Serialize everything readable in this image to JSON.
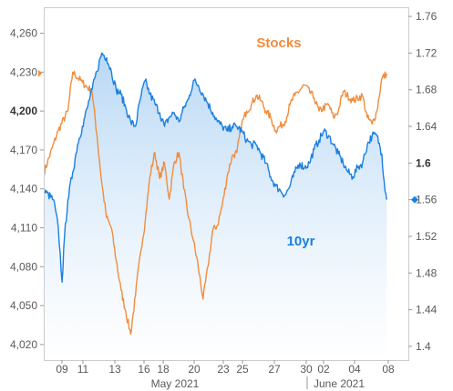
{
  "chart_data": {
    "type": "line",
    "title": "",
    "x_tick_labels": [
      "09",
      "11",
      "13",
      "16",
      "18",
      "20",
      "23",
      "25",
      "27",
      "30",
      "02",
      "04",
      "08"
    ],
    "month_labels": [
      "May 2021",
      "June 2021"
    ],
    "y_left": {
      "ticks": [
        4020,
        4050,
        4080,
        4110,
        4140,
        4170,
        4200,
        4230,
        4260
      ],
      "tick_labels": [
        "4,020",
        "4,050",
        "4,080",
        "4,110",
        "4,140",
        "4,170",
        "4,200",
        "4,230",
        "4,260"
      ],
      "bold_tick": 4200,
      "range": [
        4008,
        4280
      ]
    },
    "y_right": {
      "ticks": [
        1.4,
        1.44,
        1.48,
        1.52,
        1.56,
        1.6,
        1.64,
        1.68,
        1.72,
        1.76
      ],
      "tick_labels": [
        "1.4",
        "1.44",
        "1.48",
        "1.52",
        "1.56",
        "1.6",
        "1.64",
        "1.68",
        "1.72",
        "1.76"
      ],
      "bold_tick": 1.6,
      "range": [
        1.385,
        1.77
      ]
    },
    "series": [
      {
        "name": "Stocks",
        "axis": "left",
        "color": "#f28c3c",
        "last_value": 4229,
        "points": [
          [
            0,
            4152
          ],
          [
            3,
            4185
          ],
          [
            5,
            4200
          ],
          [
            6,
            4230
          ],
          [
            8,
            4222
          ],
          [
            10,
            4215
          ],
          [
            11,
            4182
          ],
          [
            12,
            4145
          ],
          [
            13,
            4118
          ],
          [
            14,
            4110
          ],
          [
            15,
            4085
          ],
          [
            16,
            4062
          ],
          [
            17,
            4045
          ],
          [
            18,
            4028
          ],
          [
            19,
            4058
          ],
          [
            20,
            4090
          ],
          [
            21,
            4115
          ],
          [
            22,
            4150
          ],
          [
            23,
            4168
          ],
          [
            24,
            4148
          ],
          [
            25,
            4160
          ],
          [
            26,
            4132
          ],
          [
            27,
            4160
          ],
          [
            28,
            4168
          ],
          [
            29,
            4140
          ],
          [
            30,
            4118
          ],
          [
            31,
            4100
          ],
          [
            32,
            4080
          ],
          [
            33,
            4055
          ],
          [
            34,
            4080
          ],
          [
            35,
            4108
          ],
          [
            36,
            4112
          ],
          [
            37,
            4128
          ],
          [
            38,
            4150
          ],
          [
            39,
            4165
          ],
          [
            40,
            4168
          ],
          [
            41,
            4190
          ],
          [
            42,
            4200
          ],
          [
            43,
            4205
          ],
          [
            44,
            4212
          ],
          [
            45,
            4208
          ],
          [
            46,
            4200
          ],
          [
            47,
            4195
          ],
          [
            48,
            4185
          ],
          [
            50,
            4192
          ],
          [
            51,
            4205
          ],
          [
            52,
            4212
          ],
          [
            54,
            4220
          ],
          [
            56,
            4210
          ],
          [
            57,
            4200
          ],
          [
            59,
            4205
          ],
          [
            60,
            4195
          ],
          [
            61,
            4200
          ],
          [
            62,
            4215
          ],
          [
            64,
            4208
          ],
          [
            66,
            4212
          ],
          [
            67,
            4195
          ],
          [
            68,
            4190
          ],
          [
            69,
            4200
          ],
          [
            70,
            4225
          ],
          [
            71,
            4229
          ]
        ]
      },
      {
        "name": "10yr",
        "axis": "right",
        "color": "#1a7fe0",
        "last_value": 1.56,
        "points": [
          [
            0,
            1.57
          ],
          [
            2,
            1.56
          ],
          [
            3,
            1.53
          ],
          [
            3.8,
            1.47
          ],
          [
            4.3,
            1.52
          ],
          [
            5,
            1.56
          ],
          [
            6,
            1.59
          ],
          [
            7,
            1.62
          ],
          [
            8,
            1.64
          ],
          [
            9,
            1.66
          ],
          [
            10,
            1.68
          ],
          [
            11,
            1.7
          ],
          [
            12,
            1.72
          ],
          [
            13,
            1.715
          ],
          [
            14,
            1.7
          ],
          [
            15,
            1.68
          ],
          [
            16,
            1.675
          ],
          [
            17,
            1.66
          ],
          [
            18,
            1.645
          ],
          [
            19,
            1.64
          ],
          [
            20,
            1.67
          ],
          [
            21,
            1.69
          ],
          [
            22,
            1.675
          ],
          [
            23,
            1.665
          ],
          [
            24,
            1.655
          ],
          [
            25,
            1.64
          ],
          [
            26,
            1.65
          ],
          [
            27,
            1.655
          ],
          [
            28,
            1.645
          ],
          [
            29,
            1.66
          ],
          [
            30,
            1.67
          ],
          [
            31,
            1.69
          ],
          [
            32,
            1.685
          ],
          [
            33,
            1.675
          ],
          [
            34,
            1.665
          ],
          [
            35,
            1.655
          ],
          [
            36,
            1.645
          ],
          [
            37,
            1.64
          ],
          [
            38,
            1.635
          ],
          [
            39,
            1.64
          ],
          [
            40,
            1.64
          ],
          [
            41,
            1.635
          ],
          [
            42,
            1.625
          ],
          [
            43,
            1.62
          ],
          [
            44,
            1.62
          ],
          [
            45,
            1.61
          ],
          [
            46,
            1.6
          ],
          [
            47,
            1.585
          ],
          [
            48,
            1.575
          ],
          [
            49,
            1.57
          ],
          [
            50,
            1.565
          ],
          [
            51,
            1.575
          ],
          [
            52,
            1.59
          ],
          [
            53,
            1.6
          ],
          [
            54,
            1.595
          ],
          [
            55,
            1.6
          ],
          [
            56,
            1.615
          ],
          [
            57,
            1.625
          ],
          [
            58,
            1.635
          ],
          [
            59,
            1.63
          ],
          [
            60,
            1.62
          ],
          [
            61,
            1.61
          ],
          [
            62,
            1.6
          ],
          [
            63,
            1.59
          ],
          [
            64,
            1.585
          ],
          [
            65,
            1.595
          ],
          [
            66,
            1.6
          ],
          [
            67,
            1.62
          ],
          [
            68,
            1.63
          ],
          [
            69,
            1.63
          ],
          [
            70,
            1.61
          ],
          [
            70.5,
            1.58
          ],
          [
            71,
            1.56
          ]
        ]
      }
    ],
    "x_axis": {
      "x_range": [
        0,
        75.5
      ]
    },
    "fill": {
      "series": "10yr",
      "top_color": "#b8d8f5",
      "bottom_color": "#ffffff"
    },
    "grid": false,
    "colors": {
      "background": "#ffffff",
      "border": "#cccccc",
      "tick_text": "#5a5a5a"
    }
  }
}
